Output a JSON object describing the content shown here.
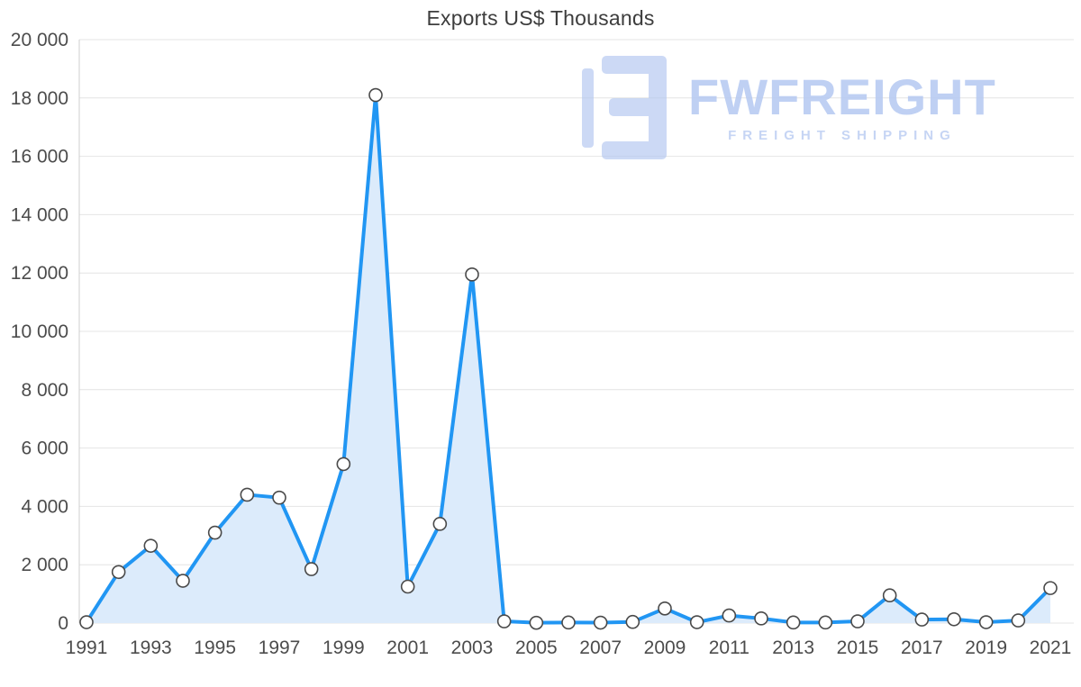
{
  "chart_data": {
    "type": "area",
    "title": "Exports US$ Thousands",
    "x": [
      1991,
      1992,
      1993,
      1994,
      1995,
      1996,
      1997,
      1998,
      1999,
      2000,
      2001,
      2002,
      2003,
      2004,
      2005,
      2006,
      2007,
      2008,
      2009,
      2010,
      2011,
      2012,
      2013,
      2014,
      2015,
      2016,
      2017,
      2018,
      2019,
      2020,
      2021
    ],
    "values": [
      30,
      1750,
      2650,
      1450,
      3100,
      4400,
      4300,
      1850,
      5450,
      18100,
      1250,
      3400,
      11950,
      60,
      10,
      20,
      15,
      40,
      500,
      30,
      260,
      160,
      20,
      20,
      60,
      950,
      120,
      130,
      30,
      90,
      1200
    ],
    "ylim": [
      0,
      20000
    ],
    "grid": true,
    "legend": "none",
    "yticks": {
      "values": [
        0,
        2000,
        4000,
        6000,
        8000,
        10000,
        12000,
        14000,
        16000,
        18000,
        20000
      ],
      "labels": [
        "0",
        "2 000",
        "4 000",
        "6 000",
        "8 000",
        "10 000",
        "12 000",
        "14 000",
        "16 000",
        "18 000",
        "20 000"
      ]
    },
    "xticks": {
      "values": [
        1991,
        1993,
        1995,
        1997,
        1999,
        2001,
        2003,
        2005,
        2007,
        2009,
        2011,
        2013,
        2015,
        2017,
        2019,
        2021
      ],
      "labels": [
        "1991",
        "1993",
        "1995",
        "1997",
        "1999",
        "2001",
        "2003",
        "2005",
        "2007",
        "2009",
        "2011",
        "2013",
        "2015",
        "2017",
        "2019",
        "2021"
      ]
    },
    "colors": {
      "line": "#2196f3",
      "fill": "#dcebfb",
      "marker_fill": "#ffffff",
      "marker_stroke": "#4a4a4a",
      "grid": "#e4e4e4",
      "axis": "#cfcfcf",
      "tick_text": "#4c4c4c",
      "title_text": "#3d3d3d"
    }
  },
  "watermark": {
    "brand": "FWFREIGHT",
    "tagline": "FREIGHT SHIPPING",
    "color": "#b5c8f1"
  }
}
